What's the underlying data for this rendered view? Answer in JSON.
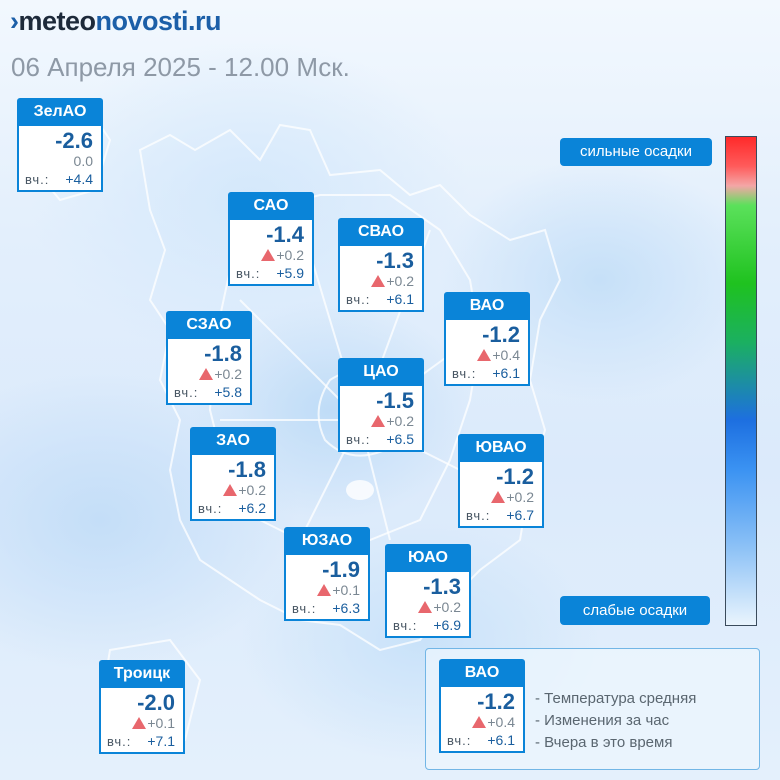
{
  "logo": {
    "mark": "›",
    "part1": "meteo",
    "part2": "novosti.ru"
  },
  "datetime": "06 Апреля 2025 - 12.00 Мск.",
  "colors": {
    "label_bg": "#0a84d8",
    "temp_text": "#1a5e9e",
    "rise_triangle": "#e8676d"
  },
  "icons": {
    "change_up": "triangle-up-icon"
  },
  "districts": {
    "zelao": {
      "name": "ЗелАО",
      "temp": "-2.6",
      "change": "0.0",
      "yesterday_label": "вч.:",
      "yesterday": "+4.4"
    },
    "sao": {
      "name": "САО",
      "temp": "-1.4",
      "change": "+0.2",
      "yesterday_label": "вч.:",
      "yesterday": "+5.9"
    },
    "svao": {
      "name": "СВАО",
      "temp": "-1.3",
      "change": "+0.2",
      "yesterday_label": "вч.:",
      "yesterday": "+6.1"
    },
    "vao": {
      "name": "ВАО",
      "temp": "-1.2",
      "change": "+0.4",
      "yesterday_label": "вч.:",
      "yesterday": "+6.1"
    },
    "szao": {
      "name": "СЗАО",
      "temp": "-1.8",
      "change": "+0.2",
      "yesterday_label": "вч.:",
      "yesterday": "+5.8"
    },
    "tsao": {
      "name": "ЦАО",
      "temp": "-1.5",
      "change": "+0.2",
      "yesterday_label": "вч.:",
      "yesterday": "+6.5"
    },
    "zao": {
      "name": "ЗАО",
      "temp": "-1.8",
      "change": "+0.2",
      "yesterday_label": "вч.:",
      "yesterday": "+6.2"
    },
    "yuvao": {
      "name": "ЮВАО",
      "temp": "-1.2",
      "change": "+0.2",
      "yesterday_label": "вч.:",
      "yesterday": "+6.7"
    },
    "yuzao": {
      "name": "ЮЗАО",
      "temp": "-1.9",
      "change": "+0.1",
      "yesterday_label": "вч.:",
      "yesterday": "+6.3"
    },
    "yuao": {
      "name": "ЮАО",
      "temp": "-1.3",
      "change": "+0.2",
      "yesterday_label": "вч.:",
      "yesterday": "+6.9"
    },
    "troitsk": {
      "name": "Троицк",
      "temp": "-2.0",
      "change": "+0.1",
      "yesterday_label": "вч.:",
      "yesterday": "+7.1"
    }
  },
  "scale": {
    "top_label": "сильные осадки",
    "bottom_label": "слабые осадки"
  },
  "legend": {
    "sample": {
      "name": "ВАО",
      "temp": "-1.2",
      "change": "+0.4",
      "yesterday_label": "вч.:",
      "yesterday": "+6.1"
    },
    "line1": "- Температура средняя",
    "line2": "- Изменения за час",
    "line3": "- Вчера в это время"
  }
}
